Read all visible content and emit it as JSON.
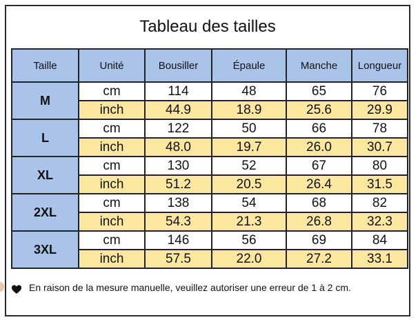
{
  "title": "Tableau des tailles",
  "headers": [
    "Taille",
    "Unité",
    "Bousiller",
    "Épaule",
    "Manche",
    "Longueur"
  ],
  "rows": [
    {
      "size": "M",
      "cm": {
        "unit": "cm",
        "values": [
          "114",
          "48",
          "65",
          "76"
        ]
      },
      "inch": {
        "unit": "inch",
        "values": [
          "44.9",
          "18.9",
          "25.6",
          "29.9"
        ]
      }
    },
    {
      "size": "L",
      "cm": {
        "unit": "cm",
        "values": [
          "122",
          "50",
          "66",
          "78"
        ]
      },
      "inch": {
        "unit": "inch",
        "values": [
          "48.0",
          "19.7",
          "26.0",
          "30.7"
        ]
      }
    },
    {
      "size": "XL",
      "cm": {
        "unit": "cm",
        "values": [
          "130",
          "52",
          "67",
          "80"
        ]
      },
      "inch": {
        "unit": "inch",
        "values": [
          "51.2",
          "20.5",
          "26.4",
          "31.5"
        ]
      }
    },
    {
      "size": "2XL",
      "cm": {
        "unit": "cm",
        "values": [
          "138",
          "54",
          "68",
          "82"
        ]
      },
      "inch": {
        "unit": "inch",
        "values": [
          "54.3",
          "21.3",
          "26.8",
          "32.3"
        ]
      }
    },
    {
      "size": "3XL",
      "cm": {
        "unit": "cm",
        "values": [
          "146",
          "56",
          "69",
          "84"
        ]
      },
      "inch": {
        "unit": "inch",
        "values": [
          "57.5",
          "22.0",
          "27.2",
          "33.1"
        ]
      }
    }
  ],
  "note": "En raison de la mesure manuelle, veuillez autoriser une erreur de 1 à 2 cm.",
  "colors": {
    "header_bg": "#a9c4e8",
    "inch_row_bg": "#fbe79e",
    "cm_row_bg": "#ffffff"
  },
  "icons": {
    "note_bullet": "heart-icon"
  }
}
